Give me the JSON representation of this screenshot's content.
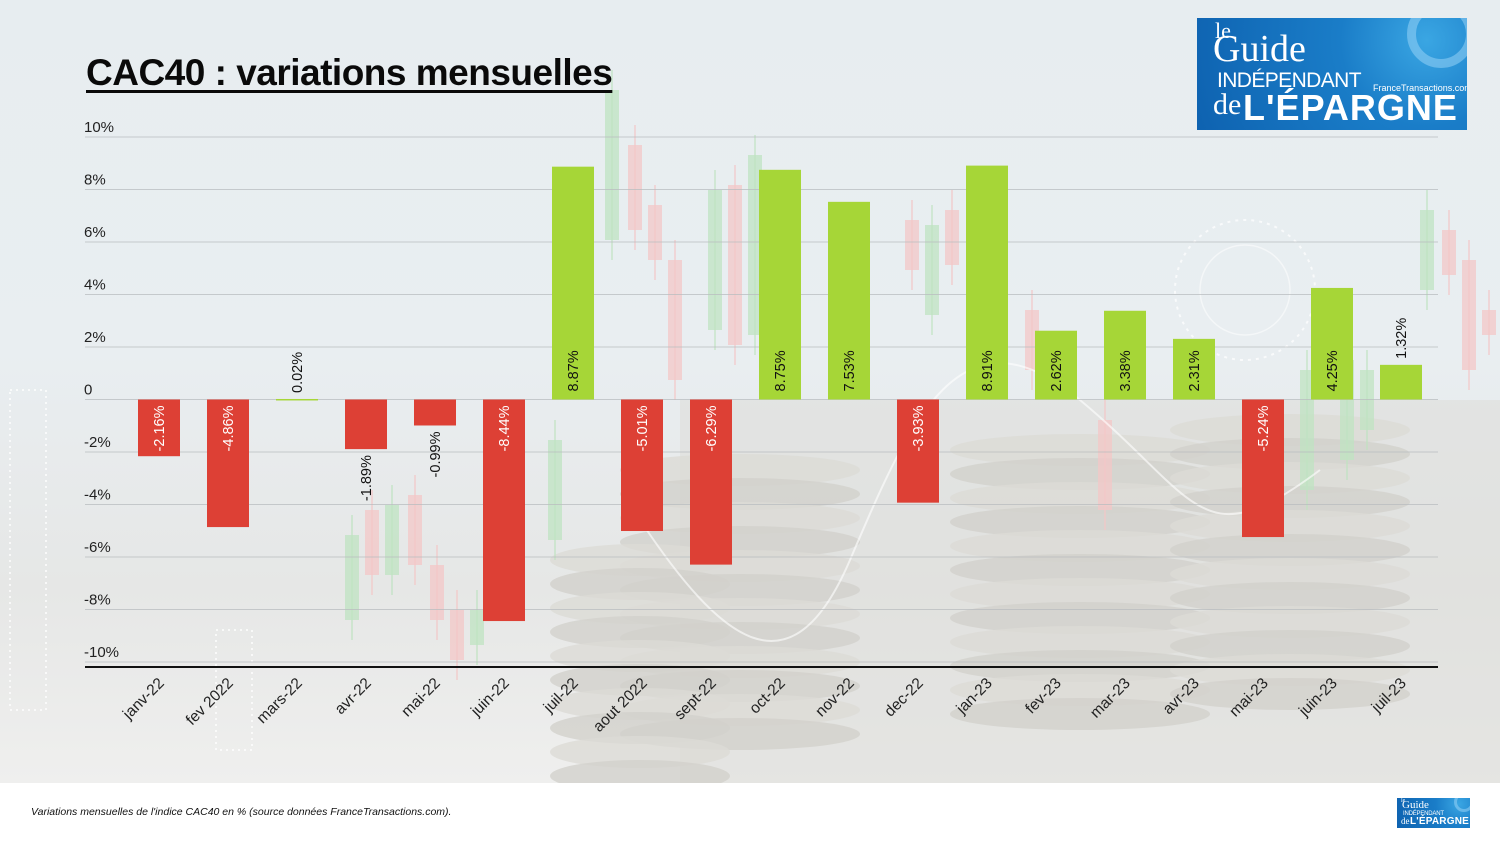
{
  "chart_data": {
    "type": "bar",
    "title": "CAC40 : variations mensuelles",
    "xlabel": "",
    "ylabel": "",
    "ylim": [
      -10,
      10
    ],
    "yticks": [
      {
        "value": 10,
        "label": "10%"
      },
      {
        "value": 8,
        "label": "8%"
      },
      {
        "value": 6,
        "label": "6%"
      },
      {
        "value": 4,
        "label": "4%"
      },
      {
        "value": 2,
        "label": "2%"
      },
      {
        "value": 0,
        "label": "0"
      },
      {
        "value": -2,
        "label": "-2%"
      },
      {
        "value": -4,
        "label": "-4%"
      },
      {
        "value": -6,
        "label": "-6%"
      },
      {
        "value": -8,
        "label": "-8%"
      },
      {
        "value": -10,
        "label": "-10%"
      }
    ],
    "categories": [
      "janv-22",
      "fev 2022",
      "mars-22",
      "avr-22",
      "mai-22",
      "juin-22",
      "juil-22",
      "aout 2022",
      "sept-22",
      "oct-22",
      "nov-22",
      "dec-22",
      "jan-23",
      "fev-23",
      "mar-23",
      "avr-23",
      "mai-23",
      "juin-23",
      "juil-23"
    ],
    "values": [
      -2.16,
      -4.86,
      0.02,
      -1.89,
      -0.99,
      -8.44,
      8.87,
      -5.01,
      -6.29,
      8.75,
      7.53,
      -3.93,
      8.91,
      2.62,
      3.38,
      2.31,
      -5.24,
      4.25,
      1.32
    ],
    "value_labels": [
      "-2.16%",
      "-4.86%",
      "0.02%",
      "-1.89%",
      "-0.99%",
      "-8.44%",
      "8.87%",
      "-5.01%",
      "-6.29%",
      "8.75%",
      "7.53%",
      "-3.93%",
      "8.91%",
      "2.62%",
      "3.38%",
      "2.31%",
      "-5.24%",
      "4.25%",
      "1.32%"
    ],
    "colors": {
      "positive": "#a6d637",
      "negative": "#dd4035"
    },
    "grid": true,
    "legend": "none"
  },
  "caption": "Variations mensuelles de l'indice CAC40 en % (source données FranceTransactions.com).",
  "logo": {
    "le": "le",
    "guide": "Guide",
    "independant": "INDÉPENDANT",
    "site": "FranceTransactions.com",
    "de": "de",
    "epargne": "L'ÉPARGNE"
  }
}
